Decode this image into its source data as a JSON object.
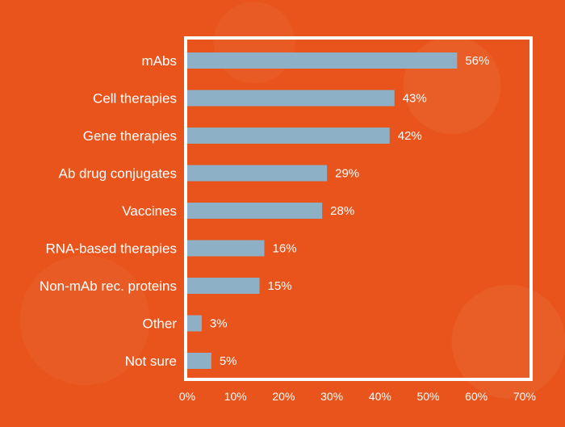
{
  "chart_data": {
    "type": "bar",
    "orientation": "horizontal",
    "categories": [
      "mAbs",
      "Cell therapies",
      "Gene therapies",
      "Ab drug conjugates",
      "Vaccines",
      "RNA-based therapies",
      "Non-mAb rec. proteins",
      "Other",
      "Not sure"
    ],
    "values": [
      56,
      43,
      42,
      29,
      28,
      16,
      15,
      3,
      5
    ],
    "value_labels": [
      "56%",
      "43%",
      "42%",
      "29%",
      "28%",
      "16%",
      "15%",
      "3%",
      "5%"
    ],
    "x_ticks": [
      "0%",
      "10%",
      "20%",
      "30%",
      "40%",
      "50%",
      "60%",
      "70%"
    ],
    "xlim": [
      0,
      70
    ],
    "title": "",
    "xlabel": "",
    "ylabel": "",
    "grid": false,
    "bar_color": "#8db0c6",
    "frame_color": "#ffffff",
    "background_color": "#e8541b"
  }
}
